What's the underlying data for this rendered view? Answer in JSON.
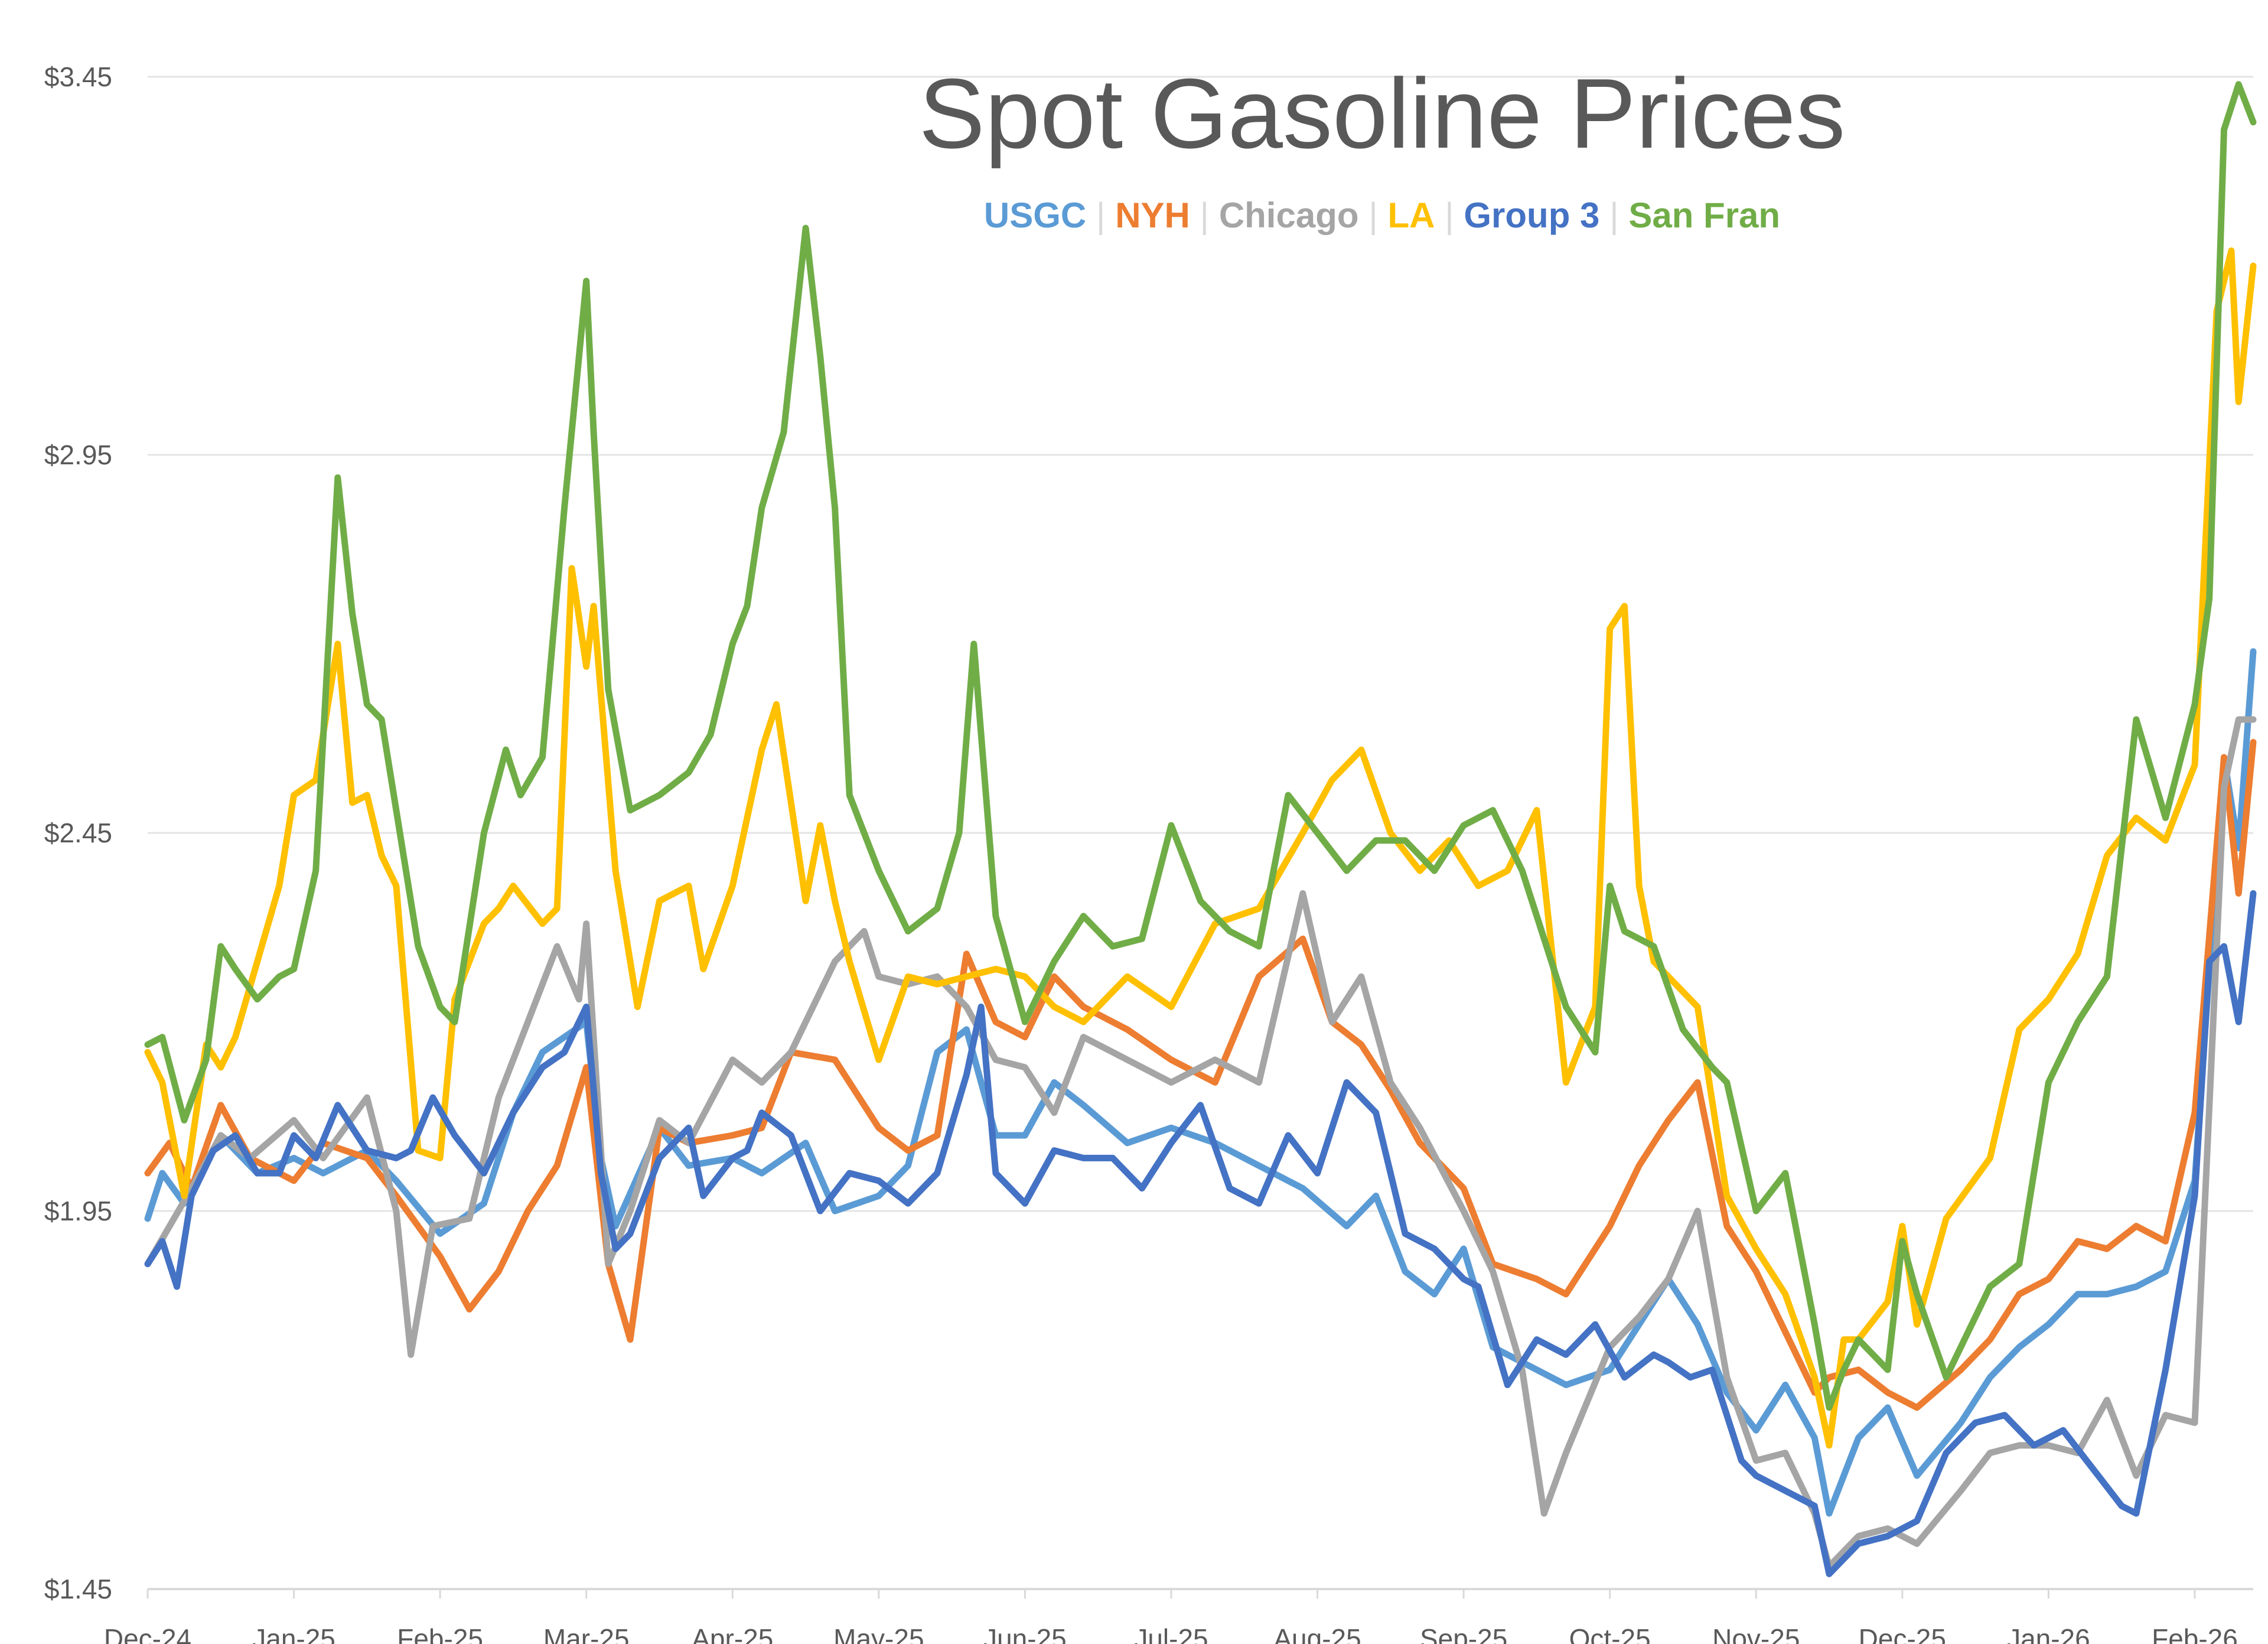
{
  "chart_data": {
    "type": "line",
    "title": "Spot Gasoline Prices",
    "xlabel": "",
    "ylabel": "",
    "ylim": [
      1.45,
      3.45
    ],
    "y_ticks": [
      "$1.45",
      "$1.95",
      "$2.45",
      "$2.95",
      "$3.45"
    ],
    "y_tick_values": [
      1.45,
      1.95,
      2.45,
      2.95,
      3.45
    ],
    "x_range": [
      0,
      14.4
    ],
    "x_ticks": [
      "Dec-24",
      "Jan-25",
      "Feb-25",
      "Mar-25",
      "Apr-25",
      "May-25",
      "Jun-25",
      "Jul-25",
      "Aug-25",
      "Sep-25",
      "Oct-25",
      "Nov-25",
      "Dec-25",
      "Jan-26",
      "Feb-26"
    ],
    "grid": true,
    "legend_position": "top",
    "colors": {
      "USGC": "#5b9bd5",
      "NYH": "#ed7d31",
      "Chicago": "#a5a5a5",
      "LA": "#ffc000",
      "Group 3": "#4472c4",
      "San Fran": "#70ad47",
      "grid": "#e4e4e4",
      "axis": "#d9d9d9",
      "text": "#595959"
    },
    "series": [
      {
        "name": "USGC",
        "x": [
          0,
          0.1,
          0.25,
          0.5,
          0.75,
          1.0,
          1.2,
          1.5,
          1.7,
          2.0,
          2.3,
          2.5,
          2.7,
          3.0,
          3.1,
          3.2,
          3.5,
          3.7,
          4.0,
          4.2,
          4.5,
          4.7,
          5.0,
          5.2,
          5.4,
          5.6,
          5.8,
          6.0,
          6.2,
          6.4,
          6.7,
          7.0,
          7.3,
          7.6,
          7.9,
          8.2,
          8.4,
          8.6,
          8.8,
          9.0,
          9.2,
          9.5,
          9.7,
          10.0,
          10.2,
          10.4,
          10.6,
          10.8,
          11.0,
          11.2,
          11.4,
          11.5,
          11.7,
          11.9,
          12.1,
          12.4,
          12.6,
          12.8,
          13.0,
          13.2,
          13.4,
          13.6,
          13.8,
          14.0,
          14.2,
          14.3,
          14.4
        ],
        "values": [
          1.94,
          2.0,
          1.96,
          2.05,
          2.0,
          2.02,
          2.0,
          2.03,
          1.99,
          1.92,
          1.96,
          2.08,
          2.16,
          2.2,
          2.02,
          1.93,
          2.06,
          2.01,
          2.02,
          2.0,
          2.04,
          1.95,
          1.97,
          2.01,
          2.16,
          2.19,
          2.05,
          2.05,
          2.12,
          2.09,
          2.04,
          2.06,
          2.04,
          2.01,
          1.98,
          1.93,
          1.97,
          1.87,
          1.84,
          1.9,
          1.77,
          1.74,
          1.72,
          1.74,
          1.8,
          1.86,
          1.8,
          1.71,
          1.66,
          1.72,
          1.65,
          1.55,
          1.65,
          1.69,
          1.6,
          1.67,
          1.73,
          1.77,
          1.8,
          1.84,
          1.84,
          1.85,
          1.87,
          1.99,
          2.55,
          2.43,
          2.69
        ]
      },
      {
        "name": "NYH",
        "x": [
          0,
          0.15,
          0.3,
          0.5,
          0.7,
          1.0,
          1.2,
          1.5,
          1.7,
          2.0,
          2.2,
          2.4,
          2.6,
          2.8,
          3.0,
          3.15,
          3.3,
          3.5,
          3.7,
          4.0,
          4.2,
          4.4,
          4.7,
          5.0,
          5.2,
          5.4,
          5.6,
          5.8,
          6.0,
          6.2,
          6.4,
          6.7,
          7.0,
          7.3,
          7.6,
          7.9,
          8.1,
          8.3,
          8.5,
          8.7,
          9.0,
          9.2,
          9.5,
          9.7,
          10.0,
          10.2,
          10.4,
          10.6,
          10.8,
          11.0,
          11.2,
          11.4,
          11.5,
          11.7,
          11.9,
          12.1,
          12.4,
          12.6,
          12.8,
          13.0,
          13.2,
          13.4,
          13.6,
          13.8,
          14.0,
          14.2,
          14.3,
          14.4
        ],
        "values": [
          2.0,
          2.04,
          1.98,
          2.09,
          2.02,
          1.99,
          2.04,
          2.02,
          1.97,
          1.89,
          1.82,
          1.87,
          1.95,
          2.01,
          2.14,
          1.88,
          1.78,
          2.06,
          2.04,
          2.05,
          2.06,
          2.16,
          2.15,
          2.06,
          2.03,
          2.05,
          2.29,
          2.2,
          2.18,
          2.26,
          2.22,
          2.19,
          2.15,
          2.12,
          2.26,
          2.31,
          2.2,
          2.17,
          2.11,
          2.04,
          1.98,
          1.88,
          1.86,
          1.84,
          1.93,
          2.01,
          2.07,
          2.12,
          1.93,
          1.87,
          1.79,
          1.71,
          1.73,
          1.74,
          1.71,
          1.69,
          1.74,
          1.78,
          1.84,
          1.86,
          1.91,
          1.9,
          1.93,
          1.91,
          2.08,
          2.55,
          2.37,
          2.57
        ]
      },
      {
        "name": "Chicago",
        "x": [
          0,
          0.15,
          0.3,
          0.5,
          0.7,
          1.0,
          1.2,
          1.5,
          1.7,
          1.8,
          1.95,
          2.2,
          2.4,
          2.6,
          2.8,
          2.95,
          3.0,
          3.15,
          3.3,
          3.5,
          3.7,
          4.0,
          4.2,
          4.4,
          4.7,
          4.9,
          5.0,
          5.2,
          5.4,
          5.6,
          5.8,
          6.0,
          6.2,
          6.4,
          6.7,
          7.0,
          7.3,
          7.6,
          7.9,
          8.1,
          8.3,
          8.5,
          8.7,
          9.0,
          9.2,
          9.4,
          9.55,
          9.7,
          10.0,
          10.2,
          10.4,
          10.6,
          10.8,
          11.0,
          11.2,
          11.4,
          11.5,
          11.7,
          11.9,
          12.1,
          12.4,
          12.6,
          12.8,
          13.0,
          13.2,
          13.4,
          13.6,
          13.8,
          14.0,
          14.2,
          14.3,
          14.4
        ],
        "values": [
          1.88,
          1.93,
          1.98,
          2.05,
          2.02,
          2.07,
          2.02,
          2.1,
          1.95,
          1.76,
          1.93,
          1.94,
          2.1,
          2.2,
          2.3,
          2.23,
          2.33,
          1.88,
          1.95,
          2.07,
          2.04,
          2.15,
          2.12,
          2.16,
          2.28,
          2.32,
          2.26,
          2.25,
          2.26,
          2.22,
          2.15,
          2.14,
          2.08,
          2.18,
          2.15,
          2.12,
          2.15,
          2.12,
          2.37,
          2.2,
          2.26,
          2.12,
          2.06,
          1.95,
          1.87,
          1.74,
          1.55,
          1.63,
          1.77,
          1.81,
          1.86,
          1.95,
          1.73,
          1.62,
          1.63,
          1.55,
          1.48,
          1.52,
          1.53,
          1.51,
          1.58,
          1.63,
          1.64,
          1.64,
          1.63,
          1.7,
          1.6,
          1.68,
          1.67,
          2.51,
          2.6,
          2.6
        ]
      },
      {
        "name": "LA",
        "x": [
          0,
          0.1,
          0.25,
          0.4,
          0.5,
          0.6,
          0.75,
          0.9,
          1.0,
          1.15,
          1.3,
          1.4,
          1.5,
          1.6,
          1.7,
          1.85,
          2.0,
          2.1,
          2.3,
          2.4,
          2.5,
          2.7,
          2.8,
          2.9,
          3.0,
          3.05,
          3.2,
          3.35,
          3.5,
          3.7,
          3.8,
          4.0,
          4.2,
          4.3,
          4.5,
          4.6,
          4.7,
          4.8,
          5.0,
          5.2,
          5.4,
          5.6,
          5.8,
          6.0,
          6.2,
          6.4,
          6.7,
          7.0,
          7.3,
          7.6,
          7.9,
          8.1,
          8.3,
          8.5,
          8.7,
          8.9,
          9.1,
          9.3,
          9.5,
          9.7,
          9.9,
          10.0,
          10.1,
          10.2,
          10.3,
          10.4,
          10.6,
          10.8,
          11.0,
          11.2,
          11.4,
          11.5,
          11.6,
          11.7,
          11.9,
          12.0,
          12.1,
          12.3,
          12.6,
          12.8,
          13.0,
          13.2,
          13.4,
          13.6,
          13.8,
          14.0,
          14.15,
          14.25,
          14.3,
          14.4
        ],
        "values": [
          2.16,
          2.12,
          1.97,
          2.17,
          2.14,
          2.18,
          2.28,
          2.38,
          2.5,
          2.52,
          2.7,
          2.49,
          2.5,
          2.42,
          2.38,
          2.03,
          2.02,
          2.23,
          2.33,
          2.35,
          2.38,
          2.33,
          2.35,
          2.8,
          2.67,
          2.75,
          2.4,
          2.22,
          2.36,
          2.38,
          2.27,
          2.38,
          2.56,
          2.62,
          2.36,
          2.46,
          2.36,
          2.28,
          2.15,
          2.26,
          2.25,
          2.26,
          2.27,
          2.26,
          2.22,
          2.2,
          2.26,
          2.22,
          2.33,
          2.35,
          2.45,
          2.52,
          2.56,
          2.45,
          2.4,
          2.44,
          2.38,
          2.4,
          2.48,
          2.12,
          2.22,
          2.72,
          2.75,
          2.38,
          2.28,
          2.26,
          2.22,
          1.97,
          1.9,
          1.84,
          1.73,
          1.64,
          1.78,
          1.78,
          1.83,
          1.93,
          1.8,
          1.94,
          2.02,
          2.19,
          2.23,
          2.29,
          2.42,
          2.47,
          2.44,
          2.54,
          3.14,
          3.22,
          3.02,
          3.2
        ]
      },
      {
        "name": "Group 3",
        "x": [
          0,
          0.1,
          0.2,
          0.3,
          0.45,
          0.6,
          0.75,
          0.9,
          1.0,
          1.15,
          1.3,
          1.5,
          1.7,
          1.8,
          1.95,
          2.1,
          2.3,
          2.5,
          2.7,
          2.85,
          3.0,
          3.1,
          3.2,
          3.3,
          3.5,
          3.7,
          3.8,
          4.0,
          4.1,
          4.2,
          4.4,
          4.6,
          4.8,
          5.0,
          5.2,
          5.4,
          5.6,
          5.7,
          5.8,
          6.0,
          6.2,
          6.4,
          6.6,
          6.8,
          7.0,
          7.2,
          7.4,
          7.6,
          7.8,
          8.0,
          8.2,
          8.4,
          8.6,
          8.8,
          9.0,
          9.1,
          9.3,
          9.5,
          9.7,
          9.9,
          10.1,
          10.3,
          10.4,
          10.55,
          10.7,
          10.9,
          11.0,
          11.2,
          11.4,
          11.5,
          11.7,
          11.9,
          12.1,
          12.3,
          12.5,
          12.7,
          12.9,
          13.1,
          13.3,
          13.5,
          13.6,
          13.8,
          14.0,
          14.1,
          14.2,
          14.3,
          14.4
        ],
        "values": [
          1.88,
          1.91,
          1.85,
          1.97,
          2.03,
          2.05,
          2.0,
          2.0,
          2.05,
          2.02,
          2.09,
          2.03,
          2.02,
          2.03,
          2.1,
          2.05,
          2.0,
          2.08,
          2.14,
          2.16,
          2.22,
          2.0,
          1.9,
          1.92,
          2.02,
          2.06,
          1.97,
          2.02,
          2.03,
          2.08,
          2.05,
          1.95,
          2.0,
          1.99,
          1.96,
          2.0,
          2.13,
          2.22,
          2.0,
          1.96,
          2.03,
          2.02,
          2.02,
          1.98,
          2.04,
          2.09,
          1.98,
          1.96,
          2.05,
          2.0,
          2.12,
          2.08,
          1.92,
          1.9,
          1.86,
          1.85,
          1.72,
          1.78,
          1.76,
          1.8,
          1.73,
          1.76,
          1.75,
          1.73,
          1.74,
          1.62,
          1.6,
          1.58,
          1.56,
          1.47,
          1.51,
          1.52,
          1.54,
          1.63,
          1.67,
          1.68,
          1.64,
          1.66,
          1.61,
          1.56,
          1.55,
          1.74,
          1.97,
          2.28,
          2.3,
          2.2,
          2.37
        ]
      },
      {
        "name": "San Fran",
        "x": [
          0,
          0.1,
          0.25,
          0.4,
          0.5,
          0.6,
          0.75,
          0.9,
          1.0,
          1.15,
          1.3,
          1.4,
          1.5,
          1.6,
          1.7,
          1.85,
          2.0,
          2.1,
          2.3,
          2.45,
          2.55,
          2.7,
          2.85,
          3.0,
          3.05,
          3.15,
          3.3,
          3.5,
          3.7,
          3.85,
          4.0,
          4.1,
          4.2,
          4.35,
          4.5,
          4.6,
          4.7,
          4.8,
          5.0,
          5.2,
          5.4,
          5.55,
          5.65,
          5.8,
          6.0,
          6.2,
          6.4,
          6.6,
          6.8,
          7.0,
          7.2,
          7.4,
          7.6,
          7.8,
          8.0,
          8.2,
          8.4,
          8.6,
          8.8,
          9.0,
          9.2,
          9.4,
          9.6,
          9.7,
          9.9,
          10.0,
          10.1,
          10.3,
          10.5,
          10.7,
          10.8,
          11.0,
          11.2,
          11.4,
          11.5,
          11.6,
          11.7,
          11.9,
          12.0,
          12.1,
          12.3,
          12.6,
          12.8,
          13.0,
          13.2,
          13.4,
          13.6,
          13.8,
          14.0,
          14.1,
          14.2,
          14.3,
          14.4
        ],
        "values": [
          2.17,
          2.18,
          2.07,
          2.15,
          2.3,
          2.27,
          2.23,
          2.26,
          2.27,
          2.4,
          2.92,
          2.74,
          2.62,
          2.6,
          2.48,
          2.3,
          2.22,
          2.2,
          2.45,
          2.56,
          2.5,
          2.55,
          2.88,
          3.18,
          2.98,
          2.64,
          2.48,
          2.5,
          2.53,
          2.58,
          2.7,
          2.75,
          2.88,
          2.98,
          3.25,
          3.08,
          2.88,
          2.5,
          2.4,
          2.32,
          2.35,
          2.45,
          2.7,
          2.34,
          2.2,
          2.28,
          2.34,
          2.3,
          2.31,
          2.46,
          2.36,
          2.32,
          2.3,
          2.5,
          2.45,
          2.4,
          2.44,
          2.44,
          2.4,
          2.46,
          2.48,
          2.4,
          2.28,
          2.22,
          2.16,
          2.38,
          2.32,
          2.3,
          2.19,
          2.14,
          2.12,
          1.95,
          2.0,
          1.8,
          1.69,
          1.74,
          1.78,
          1.74,
          1.91,
          1.84,
          1.73,
          1.85,
          1.88,
          2.12,
          2.2,
          2.26,
          2.6,
          2.47,
          2.62,
          2.76,
          3.38,
          3.44,
          3.39
        ]
      }
    ]
  }
}
